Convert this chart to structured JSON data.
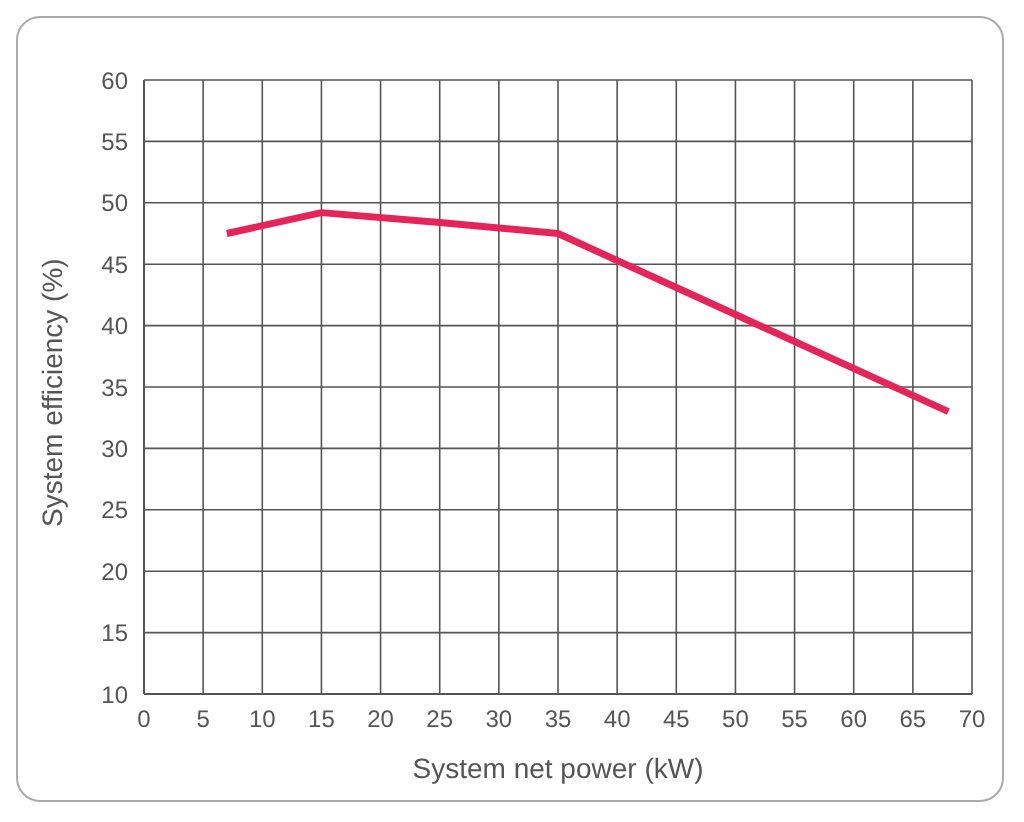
{
  "chart_data": {
    "type": "line",
    "xlabel": "System net power (kW)",
    "ylabel": "System efficiency (%)",
    "x": [
      7,
      15,
      25,
      35,
      50,
      68
    ],
    "series": [
      {
        "color": "#e5245a",
        "values": [
          47.5,
          49.2,
          48.4,
          47.5,
          40.9,
          33
        ]
      }
    ],
    "xlim": [
      0,
      70
    ],
    "xticks": [
      0,
      5,
      10,
      15,
      20,
      25,
      30,
      35,
      40,
      45,
      50,
      55,
      60,
      65,
      70
    ],
    "ylim": [
      10,
      60
    ],
    "yticks": [
      10,
      15,
      20,
      25,
      30,
      35,
      40,
      45,
      50,
      55,
      60
    ],
    "grid": true,
    "legend": false,
    "marker": "none",
    "line_style": "solid"
  }
}
